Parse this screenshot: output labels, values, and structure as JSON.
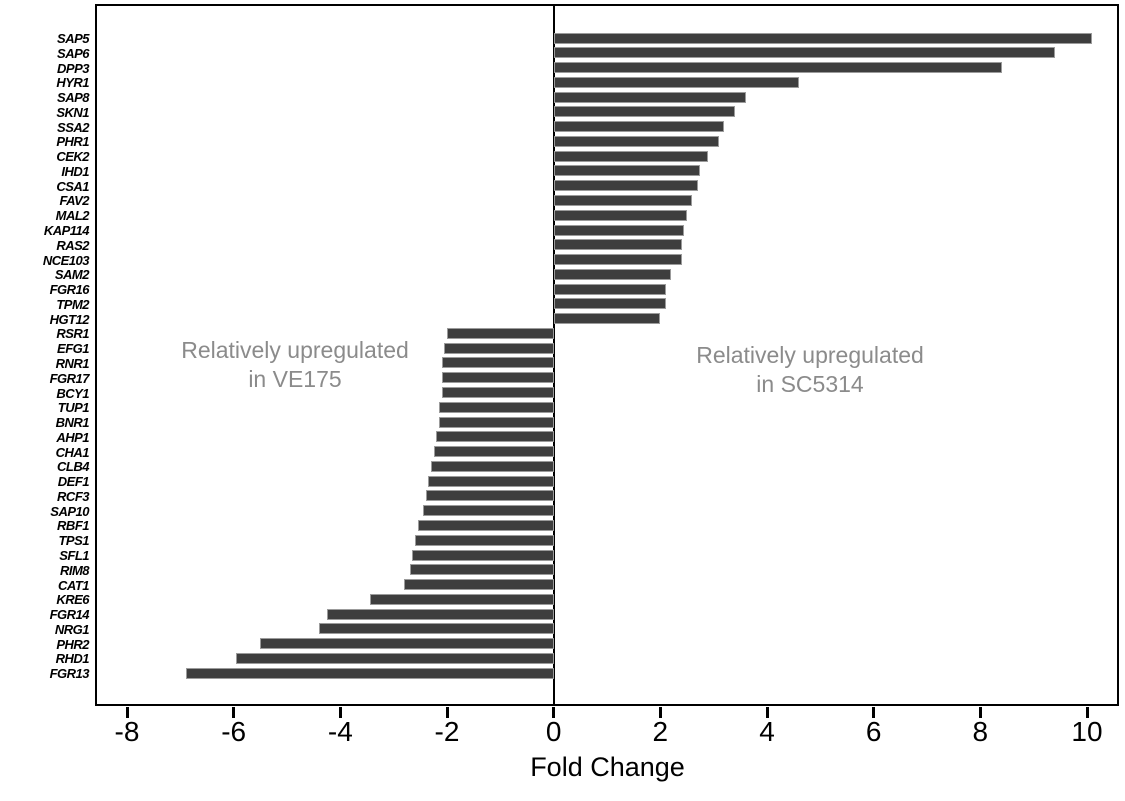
{
  "figure": {
    "x_axis_title": "Fold Change"
  },
  "chart_data": {
    "type": "bar",
    "orientation": "horizontal",
    "title": "",
    "xlabel": "Fold Change",
    "ylabel": "",
    "xlim": [
      -8.6,
      10.6
    ],
    "x_ticks": [
      -8,
      -6,
      -4,
      -2,
      0,
      2,
      4,
      6,
      8,
      10
    ],
    "grid": false,
    "legend": "none",
    "bar_color": "#3e3e3e",
    "annotation_color": "#8b8b8b",
    "annotations": [
      {
        "side": "left",
        "text_lines": [
          "Relatively upregulated",
          "in VE175"
        ]
      },
      {
        "side": "right",
        "text_lines": [
          "Relatively upregulated",
          "in SC5314"
        ]
      }
    ],
    "categories": [
      "SAP5",
      "SAP6",
      "DPP3",
      "HYR1",
      "SAP8",
      "SKN1",
      "SSA2",
      "PHR1",
      "CEK2",
      "IHD1",
      "CSA1",
      "FAV2",
      "MAL2",
      "KAP114",
      "RAS2",
      "NCE103",
      "SAM2",
      "FGR16",
      "TPM2",
      "HGT12",
      "RSR1",
      "EFG1",
      "RNR1",
      "FGR17",
      "BCY1",
      "TUP1",
      "BNR1",
      "AHP1",
      "CHA1",
      "CLB4",
      "DEF1",
      "RCF3",
      "SAP10",
      "RBF1",
      "TPS1",
      "SFL1",
      "RIM8",
      "CAT1",
      "KRE6",
      "FGR14",
      "NRG1",
      "PHR2",
      "RHD1",
      "FGR13"
    ],
    "values": [
      10.1,
      9.4,
      8.4,
      4.6,
      3.6,
      3.4,
      3.2,
      3.1,
      2.9,
      2.75,
      2.7,
      2.6,
      2.5,
      2.45,
      2.4,
      2.4,
      2.2,
      2.1,
      2.1,
      2.0,
      -2.0,
      -2.05,
      -2.1,
      -2.1,
      -2.1,
      -2.15,
      -2.15,
      -2.2,
      -2.25,
      -2.3,
      -2.35,
      -2.4,
      -2.45,
      -2.55,
      -2.6,
      -2.65,
      -2.7,
      -2.8,
      -3.45,
      -4.25,
      -4.4,
      -5.5,
      -5.95,
      -6.9
    ]
  }
}
